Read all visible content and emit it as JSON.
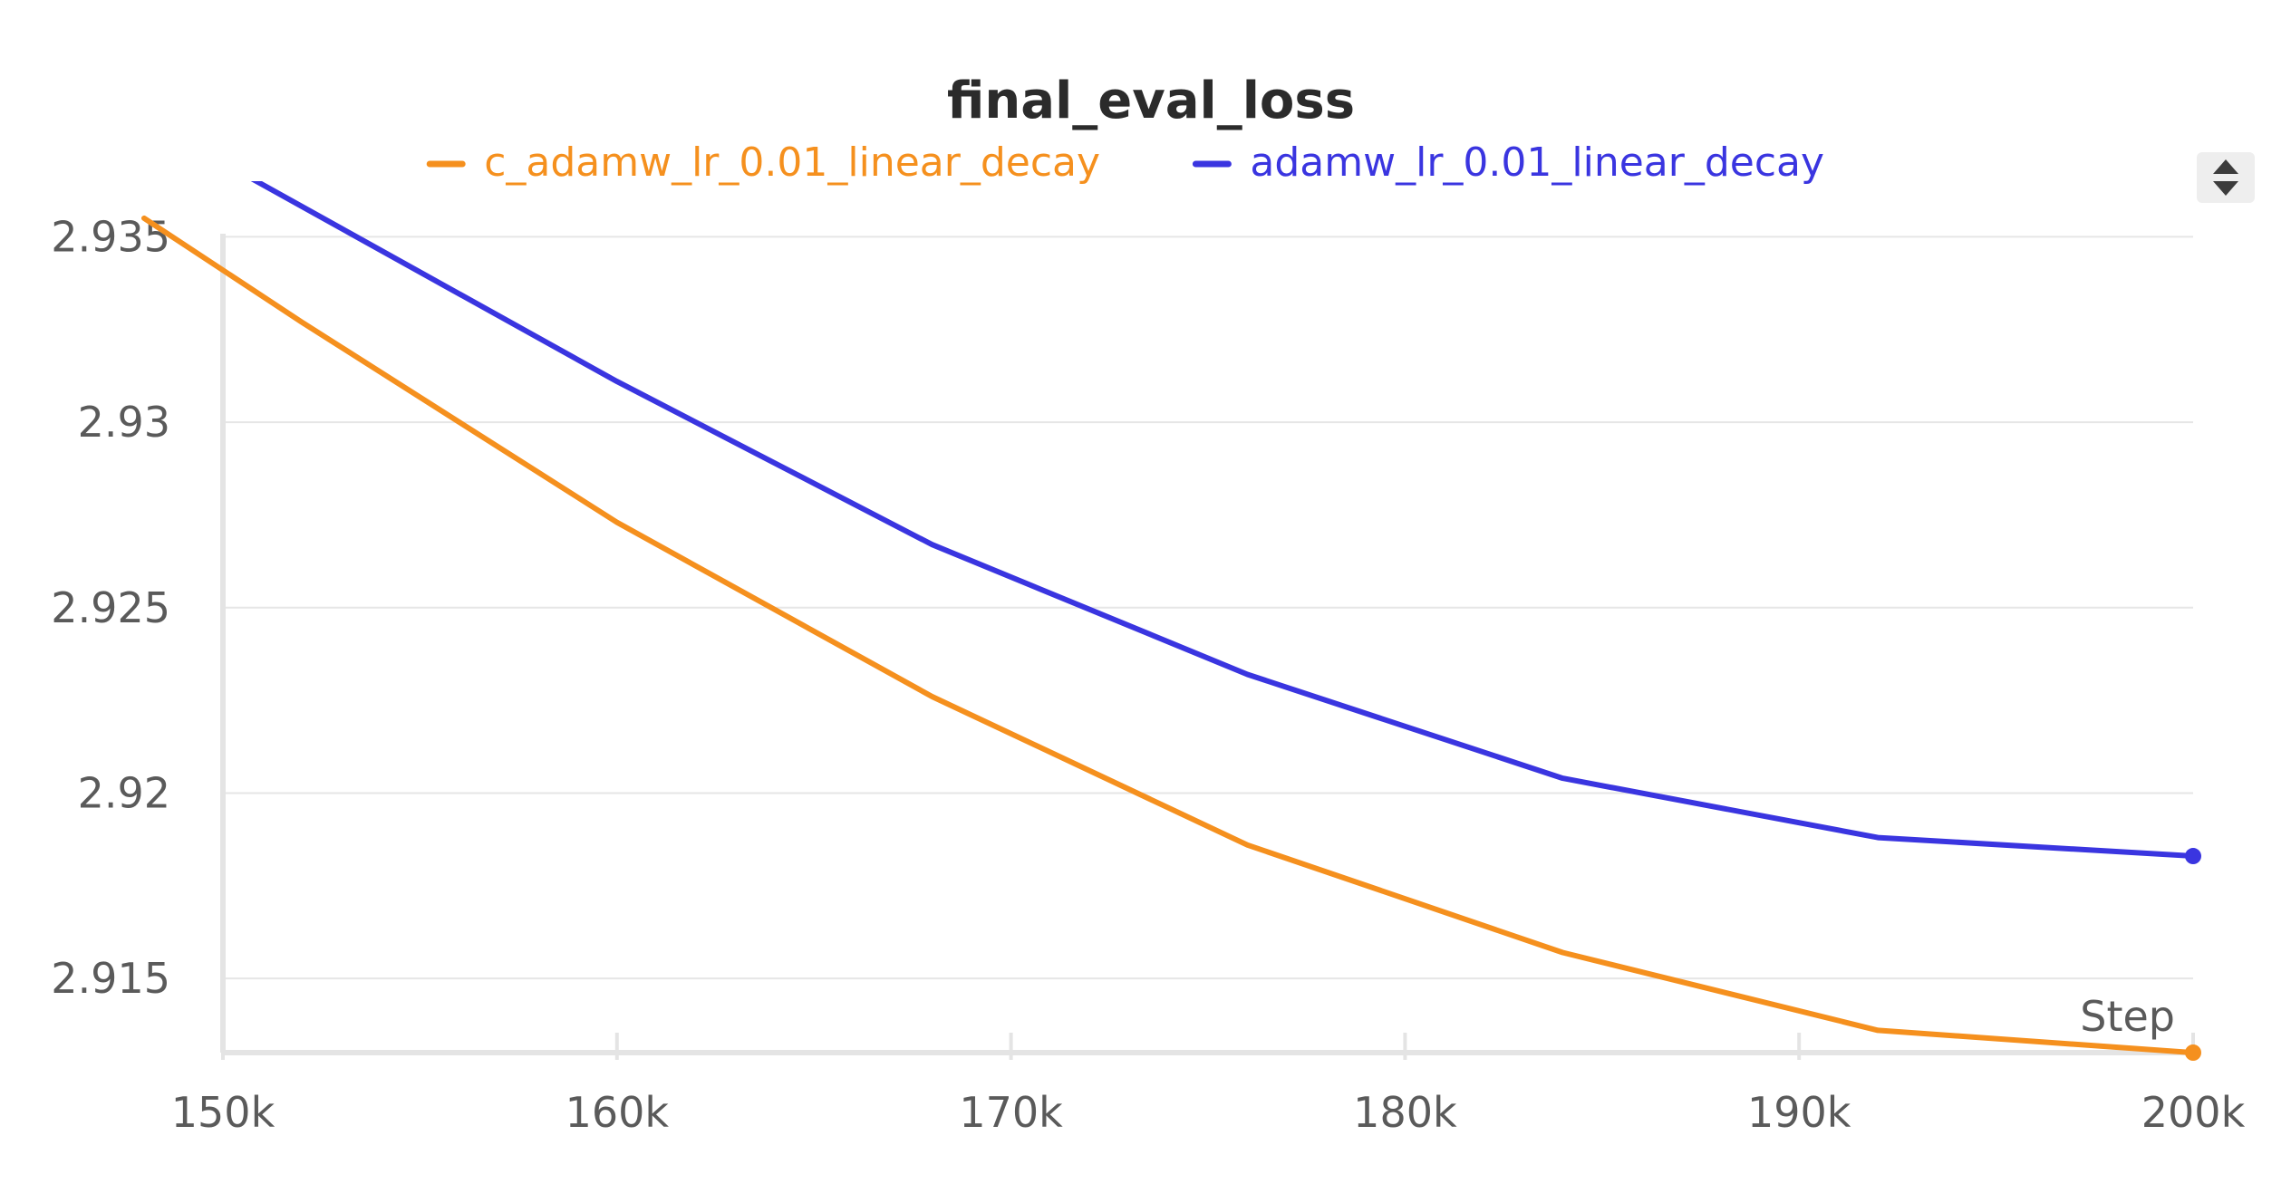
{
  "chart_data": {
    "type": "line",
    "title": "final_eval_loss",
    "xlabel": "Step",
    "ylabel": "",
    "xlim": [
      150000,
      200000
    ],
    "ylim": [
      2.913,
      2.9365
    ],
    "x_ticks": [
      150000,
      160000,
      170000,
      180000,
      190000,
      200000
    ],
    "x_tick_labels": [
      "150k",
      "160k",
      "170k",
      "180k",
      "190k",
      "200k"
    ],
    "y_ticks": [
      2.915,
      2.92,
      2.925,
      2.93,
      2.935
    ],
    "y_tick_labels": [
      "2.915",
      "2.92",
      "2.925",
      "2.93",
      "2.935"
    ],
    "grid": true,
    "legend_position": "top-center",
    "series": [
      {
        "name": "c_adamw_lr_0.01_linear_decay",
        "color": "#f5901e",
        "x": [
          148000,
          152000,
          160000,
          168000,
          176000,
          184000,
          192000,
          200000
        ],
        "values": [
          2.9355,
          2.9327,
          2.9273,
          2.9226,
          2.9186,
          2.9157,
          2.9136,
          2.913
        ]
      },
      {
        "name": "adamw_lr_0.01_linear_decay",
        "color": "#3a35e0",
        "x": [
          150000,
          160000,
          168000,
          176000,
          184000,
          192000,
          200000
        ],
        "values": [
          2.937,
          2.9311,
          2.9267,
          2.9232,
          2.9204,
          2.9188,
          2.9183
        ]
      }
    ]
  },
  "controls": {
    "legend_toggle_icon": "sort-arrows-icon"
  }
}
